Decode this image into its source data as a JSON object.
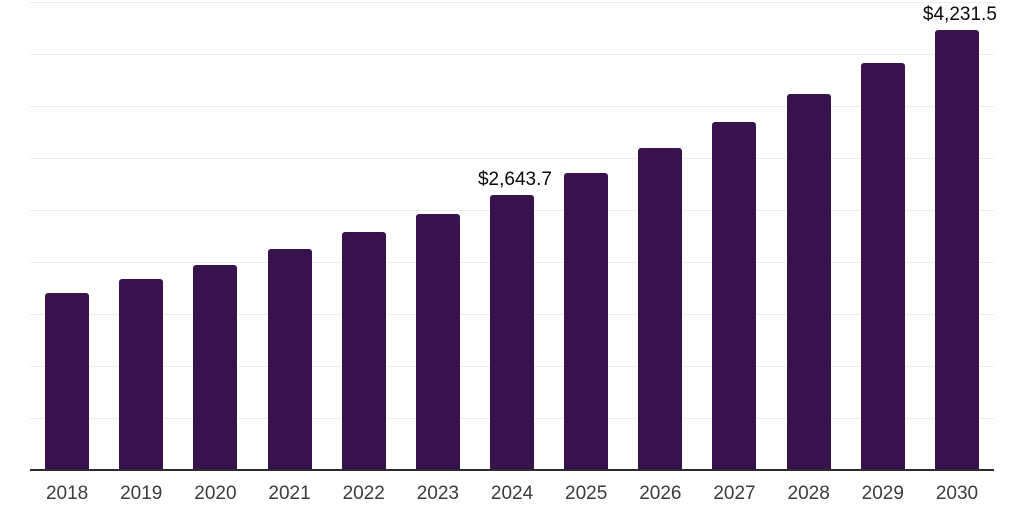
{
  "colors": {
    "background": "#ffffff",
    "bar": "#37124D",
    "axis": "#2b2b2b",
    "gridline": "#ededed",
    "tick_label": "#3c3c3c",
    "data_label": "#0a0a0a"
  },
  "chart_data": {
    "type": "bar",
    "title": "",
    "xlabel": "",
    "ylabel": "",
    "categories": [
      "2018",
      "2019",
      "2020",
      "2021",
      "2022",
      "2023",
      "2024",
      "2025",
      "2026",
      "2027",
      "2028",
      "2029",
      "2030"
    ],
    "values": [
      1703,
      1833,
      1972,
      2122,
      2284,
      2457,
      2643.7,
      2859,
      3092,
      3344,
      3617,
      3912,
      4231.5
    ],
    "value_labels": {
      "2024": "$2,643.7",
      "2030": "$4,231.5"
    },
    "ylim": [
      0,
      4500
    ],
    "grid_interval": 500,
    "grid": "horizontal",
    "legend": "none",
    "y_axis_tick_labels": "none"
  }
}
